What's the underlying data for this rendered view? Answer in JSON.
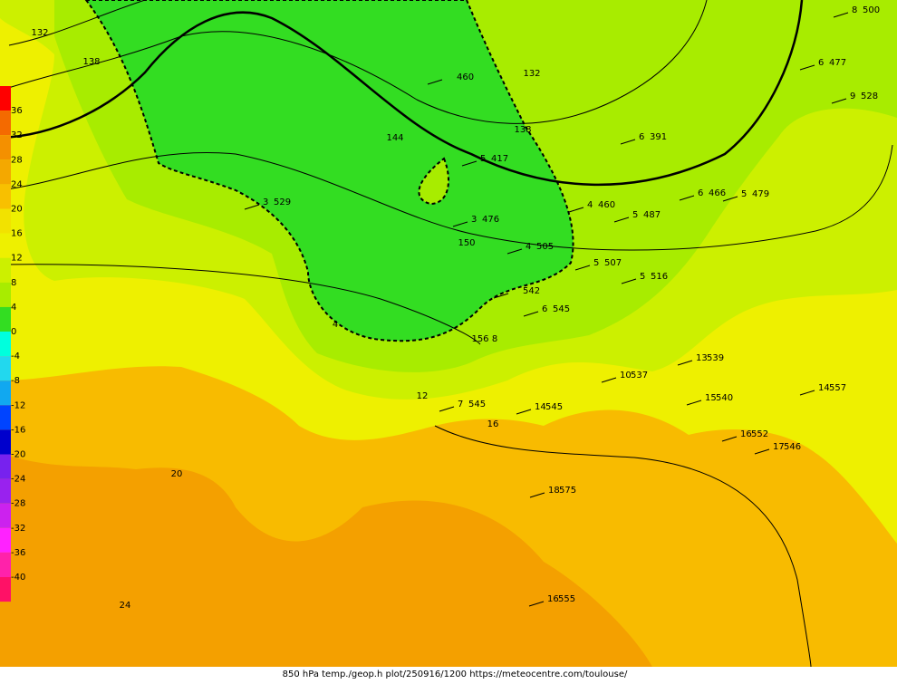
{
  "legend": {
    "labels": [
      36,
      32,
      28,
      24,
      20,
      16,
      12,
      8,
      4,
      0,
      -4,
      -8,
      -12,
      -16,
      -20,
      -24,
      -28,
      -32,
      -36,
      -40
    ]
  },
  "height_contours": [
    132,
    138,
    132,
    138,
    144,
    150,
    156
  ],
  "temp_contours": [
    4,
    8,
    12,
    16,
    20,
    24
  ],
  "stations": [
    {
      "height": 460
    },
    {
      "temp": 5,
      "height": 417
    },
    {
      "temp": 3,
      "height": 476
    },
    {
      "temp": 4,
      "height": 505
    },
    {
      "temp": 5,
      "height": 507
    },
    {
      "temp": 5,
      "height": 516
    },
    {
      "height": 542
    },
    {
      "temp": 6,
      "height": 545
    },
    {
      "temp": 6,
      "height": 391
    },
    {
      "temp": 6,
      "height": 466
    },
    {
      "temp": 5,
      "height": 487
    },
    {
      "temp": 4,
      "height": 460
    },
    {
      "temp": 5,
      "height": 479
    },
    {
      "temp": 13,
      "height": 539
    },
    {
      "temp": 10,
      "height": 537
    },
    {
      "temp": 15,
      "height": 540
    },
    {
      "temp": 14,
      "height": 557
    },
    {
      "temp": 14,
      "height": 545
    },
    {
      "temp": 16,
      "height": 552
    },
    {
      "temp": 17,
      "height": 546
    },
    {
      "temp": 18,
      "height": 575
    },
    {
      "temp": 16,
      "height": 555
    },
    {
      "temp": 7,
      "height": 545
    },
    {
      "temp": 3,
      "height": 529
    },
    {
      "temp": 8,
      "height": 500
    },
    {
      "temp": 6,
      "height": 477
    },
    {
      "temp": 9,
      "height": 528
    }
  ],
  "footer": "850 hPa temp./geop.h plot/250916/1200 https://meteocentre.com/toulouse/"
}
